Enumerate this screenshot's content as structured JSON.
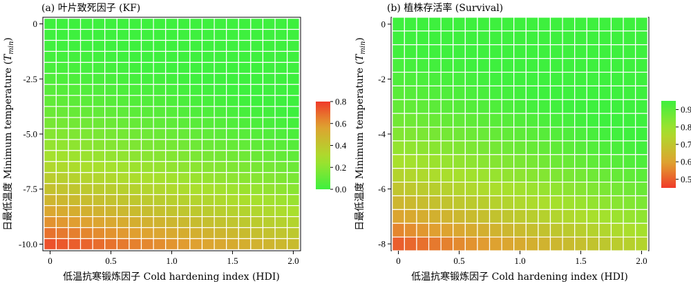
{
  "chart_data": [
    {
      "type": "heatmap",
      "title": "(a) 叶片致死因子 (KF)",
      "xlabel": "低温抗寒锻炼因子 Cold hardening index (HDI)",
      "ylabel_prefix": "日最低温度 Minimum temperature (",
      "ylabel_sym": "T",
      "ylabel_sub": "min",
      "ylabel_suffix": ")",
      "x_ticks": [
        0,
        0.5,
        1.0,
        1.5,
        2.0
      ],
      "x_tick_labels": [
        "0",
        "0.5",
        "1.0",
        "1.5",
        "2.0"
      ],
      "y_ticks": [
        0,
        -2.5,
        -5.0,
        -7.5,
        -10.0
      ],
      "y_tick_labels": [
        "0",
        "-2.5",
        "-5.0",
        "-7.5",
        "-10.0"
      ],
      "x_values": [
        0,
        0.1,
        0.2,
        0.3,
        0.4,
        0.5,
        0.6,
        0.7,
        0.8,
        0.9,
        1.0,
        1.1,
        1.2,
        1.3,
        1.4,
        1.5,
        1.6,
        1.7,
        1.8,
        1.9,
        2.0
      ],
      "y_range": [
        0,
        -10
      ],
      "y_step": -0.5,
      "xlim": [
        -0.06,
        2.06
      ],
      "ylim": [
        0.3,
        -10.3
      ],
      "value_model": "KF = 0.75*(Tmin/-10)^2 - 0.15*HDI*(Tmin/-10)",
      "value_range": [
        0.0,
        0.8
      ],
      "colorbar": {
        "ticks": [
          0.0,
          0.2,
          0.4,
          0.6,
          0.8
        ],
        "labels": [
          "0.0",
          "0.2",
          "0.4",
          "0.6",
          "0.8"
        ],
        "range": [
          0.0,
          0.8
        ],
        "reverse": false
      },
      "legend": "colorbar, right",
      "grid": false
    },
    {
      "type": "heatmap",
      "title": "(b) 植株存活率 (Survival)",
      "xlabel": "低温抗寒锻炼因子 Cold hardening index (HDI)",
      "ylabel_prefix": "日最低温度 Minimum temperature (",
      "ylabel_sym": "T",
      "ylabel_sub": "min",
      "ylabel_suffix": ")",
      "x_ticks": [
        0,
        0.5,
        1.0,
        1.5,
        2.0
      ],
      "x_tick_labels": [
        "0",
        "0.5",
        "1.0",
        "1.5",
        "2.0"
      ],
      "y_ticks": [
        0,
        -2,
        -4,
        -6,
        -8
      ],
      "y_tick_labels": [
        "0",
        "-2",
        "-4",
        "-6",
        "-8"
      ],
      "x_values": [
        0,
        0.1,
        0.2,
        0.3,
        0.4,
        0.5,
        0.6,
        0.7,
        0.8,
        0.9,
        1.0,
        1.1,
        1.2,
        1.3,
        1.4,
        1.5,
        1.6,
        1.7,
        1.8,
        1.9,
        2.0
      ],
      "y_range": [
        0,
        -8
      ],
      "y_step": -0.5,
      "xlim": [
        -0.06,
        2.06
      ],
      "ylim": [
        0.25,
        -8.25
      ],
      "value_model": "Survival = 0.95 - 0.45*(Tmin/-8)^2 + 0.12*HDI*(Tmin/-8)",
      "value_range": [
        0.45,
        0.95
      ],
      "colorbar": {
        "ticks": [
          0.5,
          0.6,
          0.7,
          0.8,
          0.9
        ],
        "labels": [
          "0.5",
          "0.6",
          "0.7",
          "0.8",
          "0.9"
        ],
        "range": [
          0.45,
          0.95
        ],
        "reverse": true
      },
      "legend": "colorbar, right",
      "grid": false
    }
  ],
  "colors": {
    "low": "#3ef03e",
    "mid": "#a8e02c",
    "mid2": "#e0a030",
    "high": "#f03a2a",
    "cell_border": "#ffffff",
    "frame": "#000000"
  }
}
